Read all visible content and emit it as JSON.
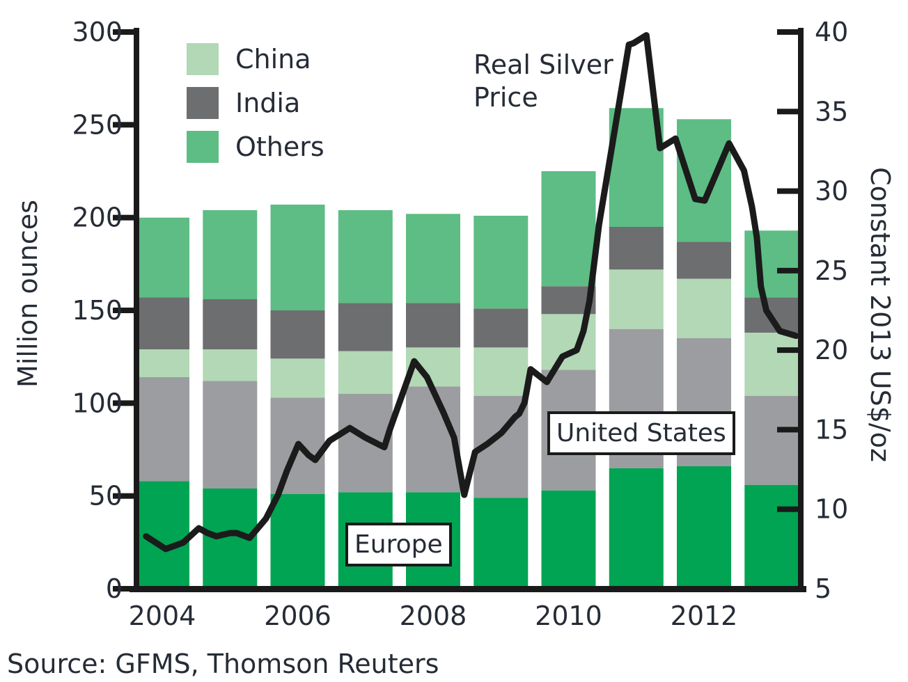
{
  "source_note": "Source: GFMS, Thomson Reuters",
  "colors": {
    "axis": "#1a1a1a",
    "text": "#262c36",
    "price_line": "#1b1b1b",
    "europe_green": "#00a452",
    "us_gray": "#9b9da0",
    "china_light_green": "#b2d8b5",
    "india_dark_gray": "#6d6e70",
    "others_green": "#5dbd84"
  },
  "chart_data": {
    "type": "bar",
    "stacked": true,
    "categories": [
      2004,
      2005,
      2006,
      2007,
      2008,
      2009,
      2010,
      2011,
      2012,
      2013
    ],
    "series": [
      {
        "name": "Europe",
        "color": "#00a452",
        "values": [
          58,
          54,
          51,
          52,
          52,
          49,
          53,
          65,
          66,
          56
        ]
      },
      {
        "name": "United States",
        "color": "#9b9da0",
        "values": [
          56,
          58,
          52,
          53,
          57,
          55,
          65,
          75,
          69,
          48
        ]
      },
      {
        "name": "China",
        "color": "#b2d8b5",
        "values": [
          15,
          17,
          21,
          23,
          21,
          26,
          30,
          32,
          32,
          34
        ]
      },
      {
        "name": "India",
        "color": "#6d6e70",
        "values": [
          28,
          27,
          26,
          26,
          24,
          21,
          15,
          23,
          20,
          19
        ]
      },
      {
        "name": "Others",
        "color": "#5dbd84",
        "values": [
          43,
          48,
          57,
          50,
          48,
          50,
          62,
          64,
          66,
          36
        ]
      }
    ],
    "totals": [
      200,
      204,
      207,
      204,
      202,
      201,
      225,
      259,
      253,
      193
    ],
    "line_overlay": {
      "name": "Real Silver Price",
      "color": "#1b1b1b",
      "units": "Constant 2013 US$/oz",
      "points": [
        [
          2003.76,
          8.3
        ],
        [
          2004.05,
          7.5
        ],
        [
          2004.31,
          7.9
        ],
        [
          2004.54,
          8.8
        ],
        [
          2004.67,
          8.5
        ],
        [
          2004.8,
          8.3
        ],
        [
          2005.0,
          8.5
        ],
        [
          2005.1,
          8.5
        ],
        [
          2005.29,
          8.2
        ],
        [
          2005.53,
          9.4
        ],
        [
          2005.71,
          10.9
        ],
        [
          2005.84,
          12.4
        ],
        [
          2006.01,
          14.1
        ],
        [
          2006.16,
          13.4
        ],
        [
          2006.26,
          13.1
        ],
        [
          2006.47,
          14.3
        ],
        [
          2006.77,
          15.1
        ],
        [
          2007.0,
          14.5
        ],
        [
          2007.23,
          14.0
        ],
        [
          2007.28,
          13.9
        ],
        [
          2007.36,
          15.0
        ],
        [
          2007.72,
          19.3
        ],
        [
          2007.91,
          18.3
        ],
        [
          2008.15,
          16.1
        ],
        [
          2008.31,
          14.5
        ],
        [
          2008.46,
          10.9
        ],
        [
          2008.62,
          13.6
        ],
        [
          2008.8,
          14.1
        ],
        [
          2009.01,
          14.8
        ],
        [
          2009.21,
          15.8
        ],
        [
          2009.27,
          16.0
        ],
        [
          2009.35,
          16.7
        ],
        [
          2009.44,
          18.8
        ],
        [
          2009.68,
          18.0
        ],
        [
          2009.91,
          19.6
        ],
        [
          2010.12,
          20.0
        ],
        [
          2010.22,
          21.2
        ],
        [
          2010.31,
          23.1
        ],
        [
          2010.45,
          27.9
        ],
        [
          2010.89,
          39.2
        ],
        [
          2010.96,
          39.3
        ],
        [
          2011.15,
          39.8
        ],
        [
          2011.35,
          32.7
        ],
        [
          2011.58,
          33.3
        ],
        [
          2011.87,
          29.5
        ],
        [
          2012.01,
          29.4
        ],
        [
          2012.37,
          33.0
        ],
        [
          2012.59,
          31.3
        ],
        [
          2012.71,
          29.0
        ],
        [
          2012.78,
          27.1
        ],
        [
          2012.84,
          24.0
        ],
        [
          2012.92,
          22.5
        ],
        [
          2013.12,
          21.2
        ],
        [
          2013.36,
          20.9
        ]
      ]
    },
    "ylabel_left": "Million ounces",
    "ylim_left": [
      0,
      300
    ],
    "yticks_left": [
      0,
      50,
      100,
      150,
      200,
      250,
      300
    ],
    "ylabel_right": "Constant 2013 US$/oz",
    "ylim_right": [
      5,
      40
    ],
    "yticks_right": [
      5,
      10,
      15,
      20,
      25,
      30,
      35,
      40
    ],
    "xticks": [
      2004,
      2006,
      2008,
      2010,
      2012
    ],
    "grid": false,
    "legend_position": "top-left-inside",
    "legend": [
      {
        "label": "China",
        "color": "#b2d8b5"
      },
      {
        "label": "India",
        "color": "#6d6e70"
      },
      {
        "label": "Others",
        "color": "#5dbd84"
      }
    ],
    "line_label": {
      "line1": "Real Silver",
      "line2": "Price"
    },
    "annotations": [
      {
        "label": "Europe"
      },
      {
        "label": "United States"
      }
    ]
  }
}
